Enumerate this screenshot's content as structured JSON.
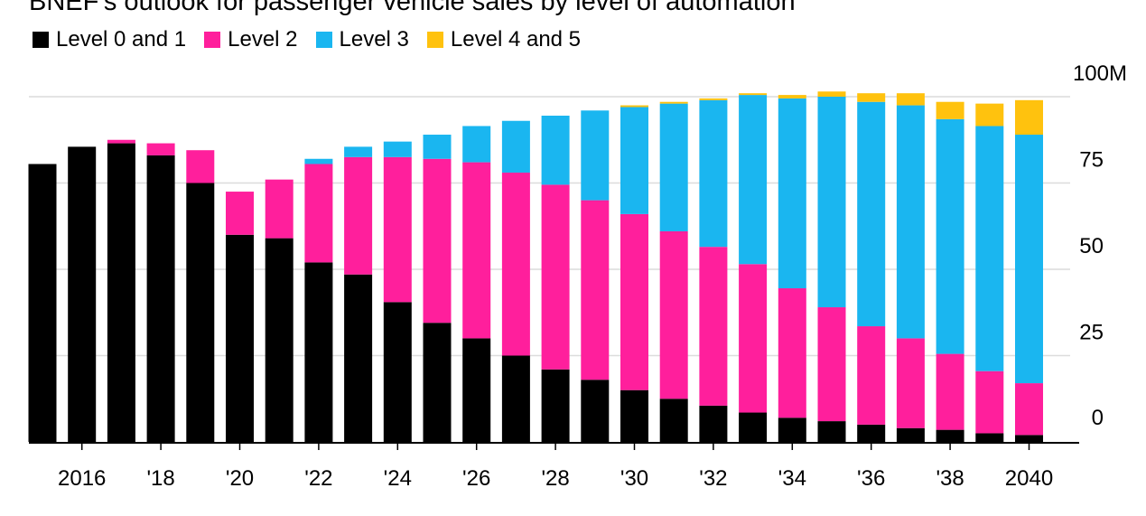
{
  "title": "BNEF's outlook for passenger vehicle sales by level of automation",
  "legend": [
    {
      "label": "Level 0 and 1",
      "color": "#000000"
    },
    {
      "label": "Level 2",
      "color": "#ff1f9c"
    },
    {
      "label": "Level 3",
      "color": "#1ab6f0"
    },
    {
      "label": "Level 4 and 5",
      "color": "#ffc20e"
    }
  ],
  "chart_data": {
    "type": "bar",
    "stacked": true,
    "categories": [
      "2015",
      "2016",
      "2017",
      "2018",
      "2019",
      "2020",
      "2021",
      "2022",
      "2023",
      "2024",
      "2025",
      "2026",
      "2027",
      "2028",
      "2029",
      "2030",
      "2031",
      "2032",
      "2033",
      "2034",
      "2035",
      "2036",
      "2037",
      "2038",
      "2039",
      "2040"
    ],
    "x_tick_labels": [
      {
        "category": "2016",
        "label": "2016"
      },
      {
        "category": "2018",
        "label": "'18"
      },
      {
        "category": "2020",
        "label": "'20"
      },
      {
        "category": "2022",
        "label": "'22"
      },
      {
        "category": "2024",
        "label": "'24"
      },
      {
        "category": "2026",
        "label": "'26"
      },
      {
        "category": "2028",
        "label": "'28"
      },
      {
        "category": "2030",
        "label": "'30"
      },
      {
        "category": "2032",
        "label": "'32"
      },
      {
        "category": "2034",
        "label": "'34"
      },
      {
        "category": "2036",
        "label": "'36"
      },
      {
        "category": "2038",
        "label": "'38"
      },
      {
        "category": "2040",
        "label": "2040"
      }
    ],
    "series": [
      {
        "name": "Level 0 and 1",
        "color": "#000000",
        "values": [
          80.5,
          85.5,
          86.5,
          83,
          75,
          60,
          59,
          52,
          48.5,
          40.5,
          34.5,
          30,
          25,
          21,
          18,
          15,
          12.5,
          10.5,
          8.5,
          7,
          6,
          5,
          4,
          3.5,
          2.5,
          2
        ]
      },
      {
        "name": "Level 2",
        "color": "#ff1f9c",
        "values": [
          0,
          0,
          1,
          3.5,
          9.5,
          12.5,
          17,
          28.5,
          34,
          42,
          47.5,
          51,
          53,
          53.5,
          52,
          51,
          48.5,
          46,
          43,
          37.5,
          33,
          28.5,
          26,
          22,
          18,
          15
        ]
      },
      {
        "name": "Level 3",
        "color": "#1ab6f0",
        "values": [
          0,
          0,
          0,
          0,
          0,
          0,
          0,
          1.5,
          3,
          4.5,
          7,
          10.5,
          15,
          20,
          26,
          31,
          37,
          42.5,
          49,
          55,
          61,
          65,
          67.5,
          68,
          71,
          72
        ]
      },
      {
        "name": "Level 4 and 5",
        "color": "#ffc20e",
        "values": [
          0,
          0,
          0,
          0,
          0,
          0,
          0,
          0,
          0,
          0,
          0,
          0,
          0,
          0,
          0,
          0.5,
          0.5,
          0.5,
          0.5,
          1,
          1.5,
          2.5,
          3.5,
          5,
          6.5,
          10
        ]
      }
    ],
    "y_axis": {
      "position": "right",
      "ylim": [
        0,
        100
      ],
      "ticks": [
        {
          "value": 0,
          "label": "0"
        },
        {
          "value": 25,
          "label": "25"
        },
        {
          "value": 50,
          "label": "50"
        },
        {
          "value": 75,
          "label": "75"
        },
        {
          "value": 100,
          "label": "100M"
        }
      ]
    },
    "grid": true
  }
}
